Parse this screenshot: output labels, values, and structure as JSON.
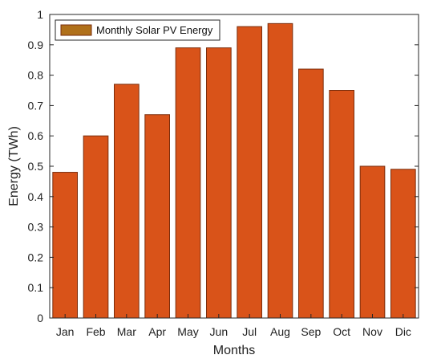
{
  "chart_data": {
    "type": "bar",
    "categories": [
      "Jan",
      "Feb",
      "Mar",
      "Apr",
      "May",
      "Jun",
      "Jul",
      "Aug",
      "Sep",
      "Oct",
      "Nov",
      "Dic"
    ],
    "series": [
      {
        "name": "Monthly Solar PV Energy",
        "values": [
          0.48,
          0.6,
          0.77,
          0.67,
          0.89,
          0.89,
          0.96,
          0.97,
          0.82,
          0.75,
          0.5,
          0.49
        ]
      }
    ],
    "xlabel": "Months",
    "ylabel": "Energy (TWh)",
    "ylim": [
      0,
      1
    ],
    "yticks": [
      "0",
      "0.1",
      "0.2",
      "0.3",
      "0.4",
      "0.5",
      "0.6",
      "0.7",
      "0.8",
      "0.9",
      "1"
    ],
    "grid": false,
    "legend_position": "top-left",
    "colors": {
      "bar_fill": "#d95319",
      "bar_edge": "#7a2d0c",
      "legend_swatch": "#b0701a",
      "axis": "#262626"
    }
  }
}
